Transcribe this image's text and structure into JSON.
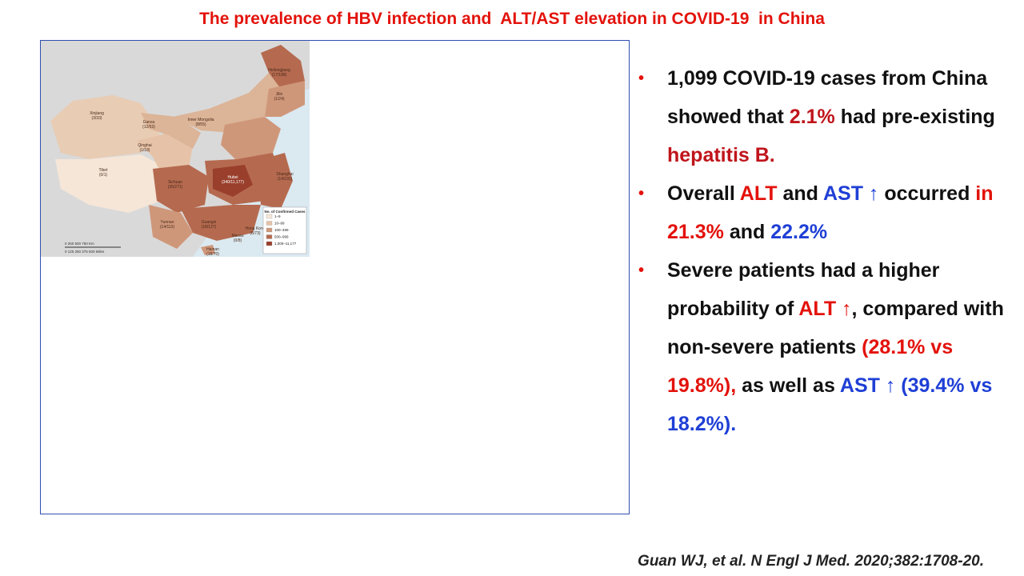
{
  "slide": {
    "title": "The prevalence of HBV infection and  ALT/AST elevation in COVID-19  in China",
    "citation": "Guan WJ, et al. N Engl J Med. 2020;382:1708-20."
  },
  "map": {
    "legend_title": "No. of Confirmed Cases",
    "legend_items": [
      "1–9",
      "10–99",
      "100–499",
      "500–999",
      "1,000–11,177"
    ],
    "legend_colors": [
      "#f5e6d8",
      "#e6c3a8",
      "#cf977a",
      "#b56a4f",
      "#9a3f2c"
    ],
    "scale_km": "0   250   500   750 Km",
    "scale_miles": "0  125  250  375  500 Miles",
    "regions": [
      {
        "name": "Xinjiang",
        "count": "(3/33)"
      },
      {
        "name": "Gansu",
        "count": "(12/53)"
      },
      {
        "name": "Inner Mongolia",
        "count": "(8/55)"
      },
      {
        "name": "Qinghai",
        "count": "(1/18)"
      },
      {
        "name": "Tibet",
        "count": "(0/1)"
      },
      {
        "name": "Heilongjiang",
        "count": "(17/188)"
      },
      {
        "name": "Jilin",
        "count": "(1/24)"
      },
      {
        "name": "Sichuan",
        "count": "(35/271)"
      },
      {
        "name": "Yunnan",
        "count": "(14/113)"
      },
      {
        "name": "Hubei",
        "count": "(340/11,177)"
      },
      {
        "name": "Shanghai",
        "count": "(14/193)"
      },
      {
        "name": "Guangxi",
        "count": "(18/127)"
      },
      {
        "name": "Hong Kong",
        "count": "(6/73)"
      },
      {
        "name": "Macau",
        "count": "(0/8)"
      },
      {
        "name": "Hainan",
        "count": "(18/70)"
      }
    ],
    "colors": {
      "land": "#d9d9d9",
      "sea": "#dbe9f1"
    }
  },
  "bullets": [
    {
      "segments": [
        {
          "text": "1,099 COVID-19 cases from China showed that ",
          "style": ""
        },
        {
          "text": "2.1%",
          "style": "red"
        },
        {
          "text": " had pre-existing ",
          "style": ""
        },
        {
          "text": "hepatitis B.",
          "style": "red"
        }
      ]
    },
    {
      "segments": [
        {
          "text": "Overall ",
          "style": ""
        },
        {
          "text": "ALT",
          "style": "bright"
        },
        {
          "text": " and ",
          "style": ""
        },
        {
          "text": "AST ↑",
          "style": "blue"
        },
        {
          "text": " occurred ",
          "style": ""
        },
        {
          "text": "in 21.3%",
          "style": "bright"
        },
        {
          "text": "  and ",
          "style": ""
        },
        {
          "text": "22.2%",
          "style": "blue"
        }
      ]
    },
    {
      "segments": [
        {
          "text": "Severe patients had a higher probability of ",
          "style": ""
        },
        {
          "text": "ALT ↑",
          "style": "bright"
        },
        {
          "text": ", compared with non-severe patients ",
          "style": ""
        },
        {
          "text": "(28.1% vs 19.8%),",
          "style": "bright"
        },
        {
          "text": " as well as ",
          "style": ""
        },
        {
          "text": "AST ↑ (39.4% vs 18.2%).",
          "style": "blue"
        }
      ]
    }
  ],
  "bullet_marker": "•"
}
